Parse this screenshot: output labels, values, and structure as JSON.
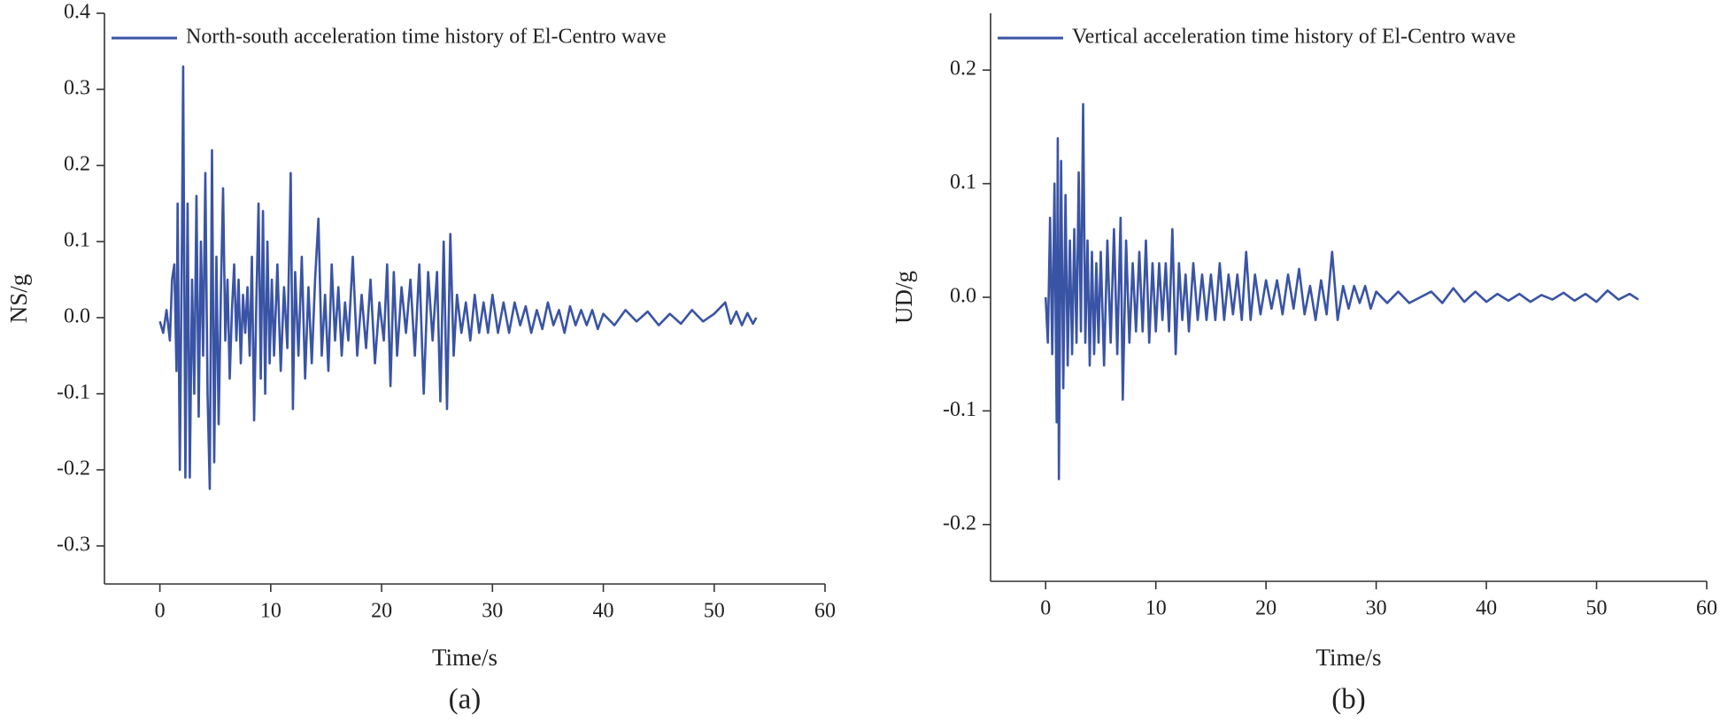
{
  "chart_data": [
    {
      "type": "line",
      "caption": "(a)",
      "x_label": "Time/s",
      "y_label": "NS/g",
      "legend": "upper left",
      "series": [
        {
          "name": "North-south acceleration time history of El-Centro wave",
          "color": "#3a54a5",
          "x": [
            0,
            0.3,
            0.6,
            0.9,
            1.1,
            1.3,
            1.5,
            1.6,
            1.8,
            2.0,
            2.1,
            2.3,
            2.5,
            2.7,
            2.9,
            3.1,
            3.3,
            3.5,
            3.7,
            3.9,
            4.1,
            4.3,
            4.5,
            4.7,
            4.9,
            5.1,
            5.3,
            5.5,
            5.7,
            5.9,
            6.1,
            6.3,
            6.5,
            6.7,
            6.9,
            7.1,
            7.3,
            7.5,
            7.7,
            7.9,
            8.1,
            8.3,
            8.5,
            8.7,
            8.9,
            9.1,
            9.3,
            9.5,
            9.7,
            9.9,
            10.1,
            10.3,
            10.6,
            10.9,
            11.2,
            11.5,
            11.8,
            12.0,
            12.2,
            12.5,
            12.8,
            13.1,
            13.4,
            13.7,
            14.0,
            14.3,
            14.6,
            14.9,
            15.2,
            15.5,
            15.8,
            16.1,
            16.4,
            16.7,
            17.0,
            17.4,
            17.8,
            18.2,
            18.6,
            19.0,
            19.4,
            19.8,
            20.2,
            20.5,
            20.8,
            21.1,
            21.4,
            21.8,
            22.2,
            22.6,
            23.0,
            23.4,
            23.8,
            24.2,
            24.6,
            25.0,
            25.3,
            25.6,
            25.9,
            26.2,
            26.5,
            26.8,
            27.2,
            27.6,
            28.0,
            28.4,
            28.8,
            29.2,
            29.6,
            30.0,
            30.5,
            31.0,
            31.5,
            32.0,
            32.5,
            33.0,
            33.5,
            34.0,
            34.5,
            35.0,
            35.5,
            36.0,
            36.5,
            37.0,
            37.5,
            38.0,
            38.5,
            39.0,
            39.5,
            40.0,
            41.0,
            42.0,
            43.0,
            44.0,
            45.0,
            46.0,
            47.0,
            48.0,
            49.0,
            50.0,
            51.0,
            51.5,
            52.0,
            52.5,
            53.0,
            53.5,
            53.8
          ],
          "values": [
            -0.005,
            -0.02,
            0.01,
            -0.03,
            0.05,
            0.07,
            -0.07,
            0.15,
            -0.2,
            0.12,
            0.33,
            -0.21,
            0.15,
            -0.21,
            0.05,
            -0.1,
            0.16,
            -0.13,
            0.1,
            -0.05,
            0.19,
            -0.1,
            -0.225,
            0.22,
            -0.19,
            0.08,
            -0.14,
            0.03,
            0.17,
            -0.03,
            0.05,
            -0.08,
            0.01,
            0.07,
            -0.03,
            0.05,
            -0.06,
            0.03,
            -0.02,
            0.04,
            -0.05,
            0.08,
            -0.135,
            0.02,
            0.15,
            -0.08,
            0.14,
            -0.1,
            0.1,
            -0.06,
            0.05,
            -0.05,
            0.07,
            -0.07,
            0.04,
            -0.04,
            0.19,
            -0.12,
            0.06,
            -0.05,
            0.08,
            -0.08,
            0.04,
            -0.06,
            0.05,
            0.13,
            -0.05,
            0.03,
            -0.07,
            0.07,
            -0.03,
            0.04,
            -0.05,
            0.02,
            -0.03,
            0.08,
            -0.05,
            0.03,
            -0.04,
            0.05,
            -0.06,
            0.02,
            -0.03,
            0.07,
            -0.09,
            0.06,
            -0.05,
            0.04,
            -0.02,
            0.05,
            -0.05,
            0.07,
            -0.1,
            0.06,
            -0.03,
            0.06,
            -0.11,
            0.1,
            -0.12,
            0.11,
            -0.05,
            0.03,
            -0.02,
            0.02,
            -0.03,
            0.03,
            -0.02,
            0.02,
            -0.02,
            0.03,
            -0.02,
            0.02,
            -0.02,
            0.02,
            -0.01,
            0.015,
            -0.02,
            0.01,
            -0.015,
            0.02,
            -0.01,
            0.01,
            -0.02,
            0.015,
            -0.01,
            0.01,
            -0.01,
            0.01,
            -0.015,
            0.005,
            -0.01,
            0.01,
            -0.005,
            0.008,
            -0.01,
            0.005,
            -0.008,
            0.01,
            -0.005,
            0.005,
            0.02,
            -0.008,
            0.008,
            -0.01,
            0.006,
            -0.008,
            0
          ]
        }
      ],
      "xlim": [
        -5,
        60
      ],
      "xticks": [
        0,
        10,
        20,
        30,
        40,
        50,
        60
      ],
      "ylim": [
        -0.35,
        0.4
      ],
      "yticks": [
        -0.3,
        -0.2,
        -0.1,
        {
          "value": 0,
          "label": "0.0"
        },
        0.1,
        0.2,
        0.3,
        0.4
      ]
    },
    {
      "type": "line",
      "caption": "(b)",
      "x_label": "Time/s",
      "y_label": "UD/g",
      "legend": "upper left",
      "series": [
        {
          "name": "Vertical acceleration time history of El-Centro wave",
          "color": "#3a54a5",
          "x": [
            0,
            0.2,
            0.4,
            0.6,
            0.8,
            1.0,
            1.1,
            1.2,
            1.4,
            1.6,
            1.8,
            2.0,
            2.2,
            2.4,
            2.6,
            2.8,
            3.0,
            3.2,
            3.4,
            3.6,
            3.8,
            4.0,
            4.2,
            4.4,
            4.6,
            4.8,
            5.0,
            5.3,
            5.6,
            5.9,
            6.2,
            6.5,
            6.8,
            7.0,
            7.3,
            7.6,
            7.9,
            8.2,
            8.5,
            8.8,
            9.1,
            9.4,
            9.7,
            10.0,
            10.3,
            10.6,
            10.9,
            11.2,
            11.5,
            11.8,
            12.1,
            12.4,
            12.7,
            13.0,
            13.4,
            13.8,
            14.2,
            14.6,
            15.0,
            15.4,
            15.8,
            16.2,
            16.6,
            17.0,
            17.4,
            17.8,
            18.2,
            18.6,
            19.0,
            19.5,
            20.0,
            20.5,
            21.0,
            21.5,
            22.0,
            22.5,
            23.0,
            23.5,
            24.0,
            24.5,
            25.0,
            25.5,
            26.0,
            26.5,
            27.0,
            27.5,
            28.0,
            28.5,
            29.0,
            29.5,
            30.0,
            31.0,
            32.0,
            33.0,
            34.0,
            35.0,
            36.0,
            37.0,
            38.0,
            39.0,
            40.0,
            41.0,
            42.0,
            43.0,
            44.0,
            45.0,
            46.0,
            47.0,
            48.0,
            49.0,
            50.0,
            51.0,
            52.0,
            53.0,
            53.8
          ],
          "values": [
            0,
            -0.04,
            0.07,
            -0.05,
            0.1,
            -0.11,
            0.14,
            -0.16,
            0.12,
            -0.08,
            0.09,
            -0.06,
            0.05,
            -0.05,
            0.06,
            -0.04,
            0.11,
            -0.03,
            0.17,
            -0.04,
            0.05,
            -0.06,
            0.04,
            -0.05,
            0.03,
            -0.04,
            0.04,
            -0.06,
            0.05,
            -0.04,
            0.06,
            -0.05,
            0.07,
            -0.09,
            0.05,
            -0.04,
            0.03,
            -0.03,
            0.04,
            -0.03,
            0.05,
            -0.04,
            0.03,
            -0.03,
            0.03,
            -0.02,
            0.03,
            -0.03,
            0.06,
            -0.05,
            0.03,
            -0.02,
            0.02,
            -0.03,
            0.03,
            -0.02,
            0.02,
            -0.02,
            0.02,
            -0.02,
            0.03,
            -0.02,
            0.02,
            -0.015,
            0.02,
            -0.02,
            0.04,
            -0.02,
            0.02,
            -0.015,
            0.015,
            -0.01,
            0.015,
            -0.015,
            0.02,
            -0.01,
            0.025,
            -0.015,
            0.01,
            -0.02,
            0.015,
            -0.015,
            0.04,
            -0.02,
            0.01,
            -0.01,
            0.01,
            -0.005,
            0.01,
            -0.01,
            0.005,
            -0.005,
            0.005,
            -0.005,
            0,
            0.005,
            -0.005,
            0.008,
            -0.004,
            0.005,
            -0.004,
            0.003,
            -0.003,
            0.003,
            -0.004,
            0.002,
            -0.002,
            0.004,
            -0.003,
            0.003,
            -0.004,
            0.006,
            -0.002,
            0.003,
            -0.002
          ]
        }
      ],
      "xlim": [
        -5,
        60
      ],
      "xticks": [
        0,
        10,
        20,
        30,
        40,
        50,
        60
      ],
      "ylim": [
        -0.25,
        0.25
      ],
      "yticks": [
        -0.2,
        -0.1,
        {
          "value": 0,
          "label": "0.0"
        },
        0.1,
        0.2
      ]
    }
  ]
}
